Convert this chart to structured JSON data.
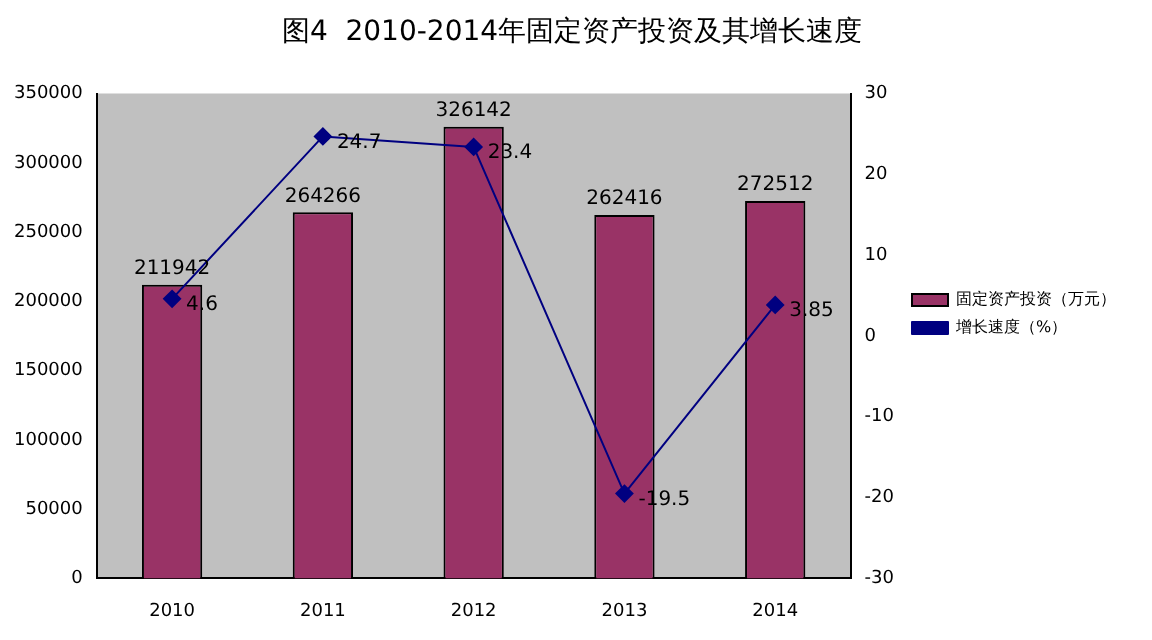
{
  "chart_data": {
    "type": "bar",
    "title": "图4  2010-2014年固定资产投资及其增长速度",
    "categories": [
      "2010",
      "2011",
      "2012",
      "2013",
      "2014"
    ],
    "series": [
      {
        "name": "固定资产投资（万元）",
        "color": "#993366",
        "values": [
          211942,
          264266,
          326142,
          262416,
          272512
        ]
      },
      {
        "name": "增长速度（%）",
        "type": "line",
        "axis": "y2",
        "color": "#000080",
        "values": [
          4.6,
          24.7,
          23.4,
          -19.5,
          3.85
        ]
      }
    ],
    "ylim": [
      0,
      350000
    ],
    "yticks": [
      0,
      50000,
      100000,
      150000,
      200000,
      250000,
      300000,
      350000
    ],
    "y2lim": [
      -30,
      30
    ],
    "y2ticks": [
      -30,
      -20,
      -10,
      0,
      10,
      20,
      30
    ],
    "data_labels": true,
    "legend": "right",
    "marker": "diamond",
    "grid": false
  }
}
